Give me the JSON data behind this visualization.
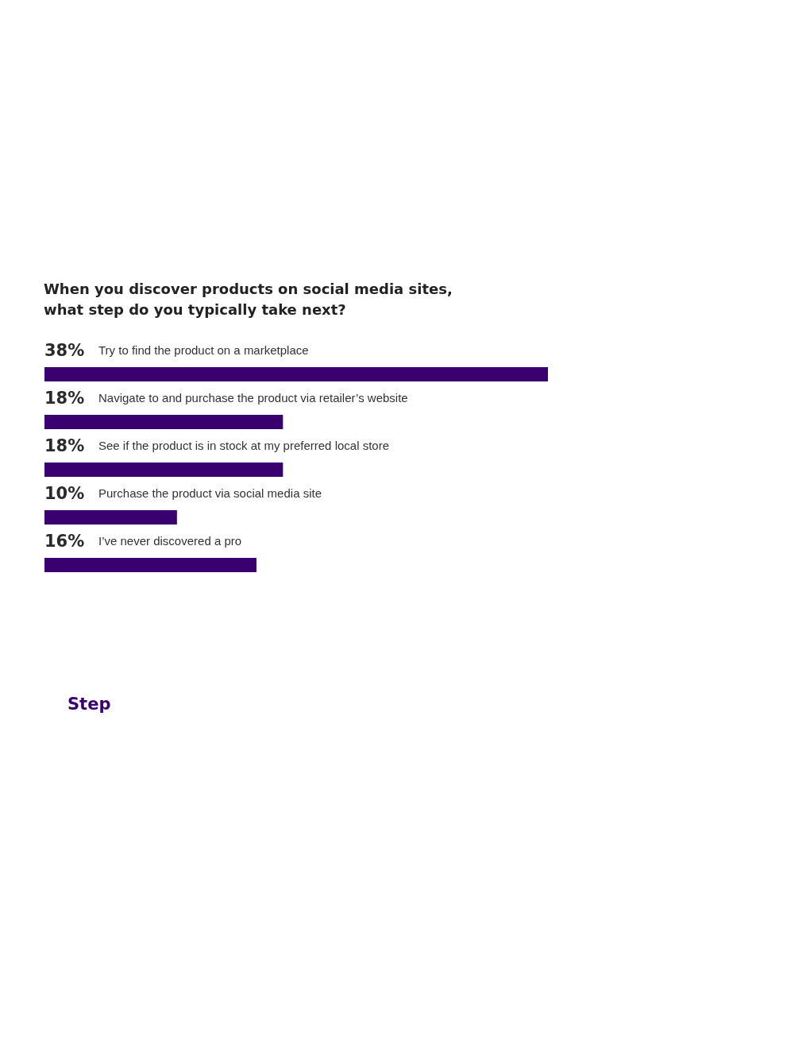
{
  "chart_data": {
    "type": "bar",
    "orientation": "horizontal",
    "title": "When you discover products on social media sites,\nwhat step do you typically take next?",
    "categories": [
      "Try to find the product on a marketplace",
      "Navigate to and purchase the product via retailer’s website",
      "See if the product is in stock at my preferred local store",
      "Purchase the product via social media site",
      "I’ve never discovered a pro"
    ],
    "values": [
      38,
      18,
      18,
      10,
      16
    ],
    "value_labels": [
      "38%",
      "18%",
      "18%",
      "10%",
      "16%"
    ],
    "color": "#3a006f",
    "annotations": [
      "Step"
    ]
  }
}
